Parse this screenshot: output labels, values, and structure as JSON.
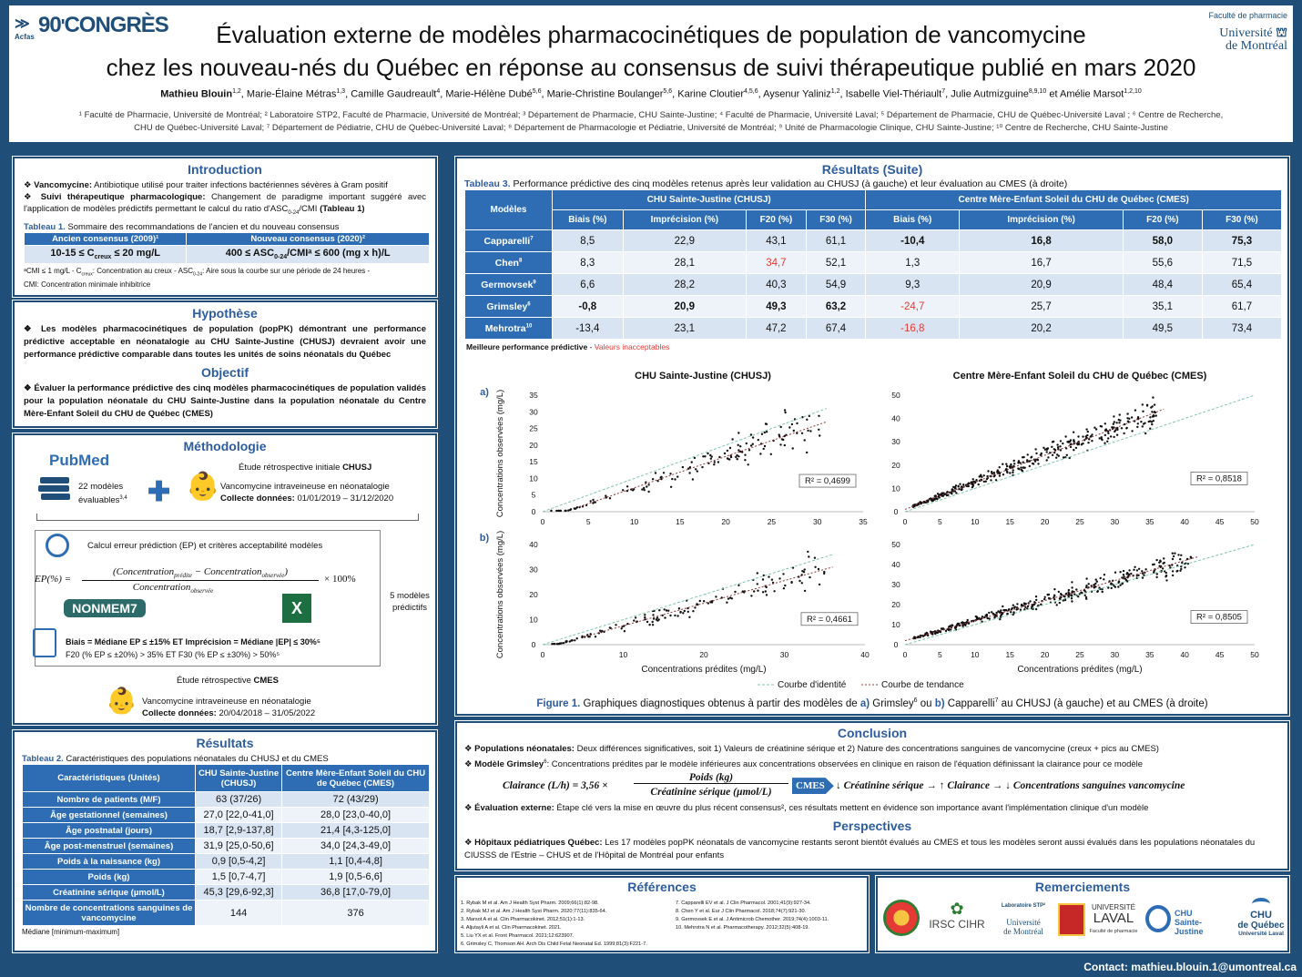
{
  "header": {
    "congress": "90",
    "congress_word": "CONGRÈS",
    "logo_small": "Acfas",
    "title_l1": "Évaluation externe de modèles pharmacocinétiques de population de vancomycine",
    "title_l2": "chez les nouveau-nés du Québec en réponse au consensus de suivi thérapeutique publié en mars 2020",
    "authors": [
      {
        "name": "Mathieu Blouin",
        "sup": "1,2",
        "bold": true
      },
      {
        "name": "Marie-Élaine Métras",
        "sup": "1,3"
      },
      {
        "name": "Camille Gaudreault",
        "sup": "4"
      },
      {
        "name": "Marie-Hélène Dubé",
        "sup": "5,6"
      },
      {
        "name": "Marie-Christine Boulanger",
        "sup": "5,6"
      },
      {
        "name": "Karine Cloutier",
        "sup": "4,5,6"
      },
      {
        "name": "Aysenur Yaliniz",
        "sup": "1,2"
      },
      {
        "name": "Isabelle Viel-Thériault",
        "sup": "7"
      },
      {
        "name": "Julie Autmizguine",
        "sup": "8,9,10"
      },
      {
        "name": "Amélie Marsot",
        "sup": "1,2,10",
        "prefix": "et "
      }
    ],
    "affil_l1": "¹ Faculté de Pharmacie, Université de Montréal; ² Laboratoire STP2, Faculté de Pharmacie, Université de Montréal; ³ Département de Pharmacie, CHU Sainte-Justine; ⁴ Faculté de Pharmacie, Université Laval; ⁵ Département de Pharmacie, CHU de Québec-Université Laval ; ⁶ Centre de Recherche,",
    "affil_l2": "CHU de Québec-Université Laval; ⁷ Département de Pédiatrie, CHU de Québec-Université Laval; ⁸ Département de Pharmacologie et Pédiatrie, Université de Montréal; ⁹ Unité de Pharmacologie Clinique, CHU Sainte-Justine; ¹⁰ Centre de Recherche, CHU Sainte-Justine",
    "faculty": "Faculté de pharmacie",
    "udem1": "Université",
    "udem2": "de Montréal"
  },
  "intro": {
    "title": "Introduction",
    "b1_bold": "Vancomycine:",
    "b1": " Antibiotique utilisé pour traiter infections bactériennes sévères à Gram positif",
    "b2_bold": "Suivi thérapeutique pharmacologique:",
    "b2": " Changement de paradigme important suggéré avec l'application de modèles prédictifs permettant le calcul du ratio d'ASC",
    "b2_sub": "0-24",
    "b2_end": "/CMI ",
    "b2_ref": "(Tableau 1)",
    "table_label": "Tableau 1.",
    "table_caption": " Sommaire des recommandations de l'ancien et du nouveau consensus",
    "col_old": "Ancien consensus (2009)¹",
    "col_new": "Nouveau consensus (2020)²",
    "val_old": "10-15 ≤ C",
    "val_old_sub": "creux",
    "val_old_end": " ≤ 20 mg/L",
    "val_new": "400 ≤ ASC",
    "val_new_sub": "0-24",
    "val_new_end": "/CMIᵃ ≤ 600 (mg x h)/L",
    "note1": "ᵃCMI ≤ 1 mg/L - C",
    "note1_sub": "creux",
    "note1_end": ": Concentration au creux - ASC",
    "note1_sub2": "0-24",
    "note1_end2": ": Aire sous la courbe sur une période de 24 heures -",
    "note2": "CMI: Concentration minimale inhibitrice"
  },
  "hypo": {
    "title": "Hypothèse",
    "text": "Les modèles pharmacocinétiques de population (popPK) démontrant une performance prédictive acceptable en néonatalogie au CHU Sainte-Justine (CHUSJ) devraient avoir une performance prédictive comparable dans toutes les unités de soins néonatals du Québec"
  },
  "objectif": {
    "title": "Objectif",
    "text": "Évaluer la performance prédictive des cinq modèles pharmacocinétiques de population validés pour la population néonatale du CHU Sainte-Justine dans la population néonatale du Centre Mère-Enfant Soleil du CHU de Québec (CMES)"
  },
  "methodo": {
    "title": "Méthodologie",
    "pubmed": "PubMed",
    "models_count": "22 modèles",
    "models_eval": "évaluables",
    "models_sup": "3,4",
    "study1": "Étude rétrospective initiale ",
    "study1_bold": "CHUSJ",
    "vanco": "Vancomycine intraveineuse en néonatalogie",
    "collect1_bold": "Collecte données:",
    "collect1": " 01/01/2019 – 31/12/2020",
    "calc": "Calcul erreur prédiction (EP) et critères acceptabilité modèles",
    "ep_label": "EP(%) =",
    "ep_num": "(Concentration",
    "ep_pred": "prédite",
    "ep_minus": " − Concentration",
    "ep_obs": "observée",
    "ep_den": "Concentration",
    "ep_times": "× 100%",
    "nonmem": "NONMEM7",
    "five_models": "5 modèles prédictifs",
    "crit1": "Biais = Médiane EP ≤ ±15% ET Imprécision = Médiane |EP| ≤ 30%⁵",
    "crit2": "F20 (% EP ≤ ±20%) > 35% ET F30 (% EP ≤ ±30%) > 50%⁵",
    "study2": "Étude rétrospective ",
    "study2_bold": "CMES",
    "vanco2": "Vancomycine intraveineuse en néonatalogie",
    "collect2_bold": "Collecte données:",
    "collect2": " 20/04/2018 – 31/05/2022"
  },
  "resultats": {
    "title": "Résultats",
    "table_label": "Tableau 2.",
    "table_caption": " Caractéristiques des populations néonatales du CHUSJ et du CMES",
    "headers": [
      "Caractéristiques (Unités)",
      "CHU Sainte-Justine (CHUSJ)",
      "Centre Mère-Enfant Soleil du CHU de Québec (CMES)"
    ],
    "rows": [
      [
        "Nombre de patients (M/F)",
        "63 (37/26)",
        "72 (43/29)"
      ],
      [
        "Âge gestationnel (semaines)",
        "27,0 [22,0-41,0]",
        "28,0 [23,0-40,0]"
      ],
      [
        "Âge postnatal (jours)",
        "18,7 [2,9-137,8]",
        "21,4 [4,3-125,0]"
      ],
      [
        "Âge post-menstruel (semaines)",
        "31,9 [25,0-50,6]",
        "34,0 [24,3-49,0]"
      ],
      [
        "Poids à la naissance (kg)",
        "0,9 [0,5-4,2]",
        "1,1 [0,4-4,8]"
      ],
      [
        "Poids (kg)",
        "1,5 [0,7-4,7]",
        "1,9 [0,5-6,6]"
      ],
      [
        "Créatinine sérique (µmol/L)",
        "45,3 [29,6-92,3]",
        "36,8 [17,0-79,0]"
      ],
      [
        "Nombre de concentrations sanguines de vancomycine",
        "144",
        "376"
      ]
    ],
    "note": "Médiane [minimum-maximum]"
  },
  "suite": {
    "title": "Résultats (Suite)",
    "table_label": "Tableau 3.",
    "table_caption": " Performance prédictive des cinq modèles retenus après leur validation au CHUSJ (à gauche) et leur évaluation au CMES (à droite)",
    "col_models": "Modèles",
    "grp1": "CHU Sainte-Justine (CHUSJ)",
    "grp2": "Centre Mère-Enfant Soleil du CHU de Québec (CMES)",
    "sub": [
      "Biais (%)",
      "Imprécision (%)",
      "F20 (%)",
      "F30 (%)",
      "Biais (%)",
      "Imprécision (%)",
      "F20 (%)",
      "F30 (%)"
    ],
    "rows": [
      {
        "model": "Capparelli",
        "sup": "7",
        "vals": [
          "8,5",
          "22,9",
          "43,1",
          "61,1",
          "-10,4",
          "16,8",
          "58,0",
          "75,3"
        ],
        "bold": [
          4,
          5,
          6,
          7
        ],
        "red": []
      },
      {
        "model": "Chen",
        "sup": "8",
        "vals": [
          "8,3",
          "28,1",
          "34,7",
          "52,1",
          "1,3",
          "16,7",
          "55,6",
          "71,5"
        ],
        "bold": [],
        "red": [
          2
        ]
      },
      {
        "model": "Germovsek",
        "sup": "9",
        "vals": [
          "6,6",
          "28,2",
          "40,3",
          "54,9",
          "9,3",
          "20,9",
          "48,4",
          "65,4"
        ],
        "bold": [],
        "red": []
      },
      {
        "model": "Grimsley",
        "sup": "6",
        "vals": [
          "-0,8",
          "20,9",
          "49,3",
          "63,2",
          "-24,7",
          "25,7",
          "35,1",
          "61,7"
        ],
        "bold": [
          0,
          1,
          2,
          3
        ],
        "red": [
          4
        ]
      },
      {
        "model": "Mehrotra",
        "sup": "10",
        "vals": [
          "-13,4",
          "23,1",
          "47,2",
          "67,4",
          "-16,8",
          "20,2",
          "49,5",
          "73,4"
        ],
        "bold": [],
        "red": [
          4
        ]
      }
    ],
    "legend_bold": "Meilleure performance prédictive",
    "legend_sep": " - ",
    "legend_red": "Valeurs inacceptables",
    "fig_label": "Figure 1.",
    "fig_caption": " Graphiques diagnostiques obtenus à partir des modèles de ",
    "fig_a": "a)",
    "fig_a_txt": " Grimsley",
    "fig_a_sup": "6",
    "fig_or": " ou ",
    "fig_b": "b)",
    "fig_b_txt": " Capparelli",
    "fig_b_sup": "7",
    "fig_end": " au CHUSJ (à gauche) et au CMES (à droite)",
    "identity": "Courbe d'identité",
    "trend": "Courbe de tendance"
  },
  "chart_data": [
    {
      "type": "scatter",
      "panel": "a",
      "title": "CHU Sainte-Justine (CHUSJ)",
      "xlabel": "",
      "ylabel": "Concentrations observées (mg/L)",
      "xlim": [
        0,
        35
      ],
      "ylim": [
        0,
        35
      ],
      "xticks": [
        0,
        5,
        10,
        15,
        20,
        25,
        30,
        35
      ],
      "yticks": [
        0,
        5,
        10,
        15,
        20,
        25,
        30,
        35
      ],
      "r2": "R² = 0,4699",
      "n_points": 144,
      "identity": [
        [
          0,
          0
        ],
        [
          31,
          31
        ]
      ],
      "trend": [
        [
          4,
          1.5
        ],
        [
          31,
          27
        ]
      ]
    },
    {
      "type": "scatter",
      "panel": "a",
      "title": "Centre Mère-Enfant Soleil du CHU de Québec (CMES)",
      "xlabel": "",
      "ylabel": "",
      "xlim": [
        0,
        50
      ],
      "ylim": [
        0,
        50
      ],
      "xticks": [
        0,
        5,
        10,
        15,
        20,
        25,
        30,
        35,
        40,
        45,
        50
      ],
      "yticks": [
        0,
        10,
        20,
        30,
        40,
        50
      ],
      "r2": "R² = 0,8518",
      "n_points": 376,
      "identity": [
        [
          0,
          0
        ],
        [
          50,
          50
        ]
      ],
      "trend": [
        [
          0,
          1
        ],
        [
          37,
          44
        ]
      ]
    },
    {
      "type": "scatter",
      "panel": "b",
      "title": "",
      "xlabel": "Concentrations prédites (mg/L)",
      "ylabel": "Concentrations observées (mg/L)",
      "xlim": [
        0,
        40
      ],
      "ylim": [
        0,
        40
      ],
      "xticks": [
        0,
        10,
        20,
        30,
        40
      ],
      "yticks": [
        0,
        10,
        20,
        30,
        40
      ],
      "r2": "R² = 0,4661",
      "n_points": 144,
      "identity": [
        [
          0,
          0
        ],
        [
          36,
          36
        ]
      ],
      "trend": [
        [
          5,
          3
        ],
        [
          36,
          31
        ]
      ]
    },
    {
      "type": "scatter",
      "panel": "b",
      "title": "",
      "xlabel": "Concentrations prédites (mg/L)",
      "ylabel": "",
      "xlim": [
        0,
        50
      ],
      "ylim": [
        0,
        50
      ],
      "xticks": [
        0,
        5,
        10,
        15,
        20,
        25,
        30,
        35,
        40,
        45,
        50
      ],
      "yticks": [
        0,
        10,
        20,
        30,
        40,
        50
      ],
      "r2": "R² = 0,8505",
      "n_points": 376,
      "identity": [
        [
          0,
          0
        ],
        [
          50,
          50
        ]
      ],
      "trend": [
        [
          0,
          2
        ],
        [
          42,
          44
        ]
      ]
    }
  ],
  "conclusion": {
    "title": "Conclusion",
    "c1_bold": "Populations néonatales:",
    "c1": " Deux différences significatives, soit 1) Valeurs de créatinine sérique et 2) Nature des concentrations sanguines de vancomycine (creux + pics au CMES)",
    "c2_bold": "Modèle Grimsley",
    "c2_sup": "6",
    "c2": ": Concentrations prédites par le modèle inférieures aux concentrations observées en clinique en raison de l'équation définissant la clairance pour ce modèle",
    "eq_left": "Clairance (L/h) = 3,56 ×",
    "eq_num": "Poids (kg)",
    "eq_den": "Créatinine sérique (µmol/L)",
    "cmes": "CMES",
    "eq_right": "↓ Créatinine sérique → ↑ Clairance → ↓ Concentrations sanguines vancomycine",
    "c3_bold": "Évaluation externe:",
    "c3": " Étape clé vers la mise en œuvre du plus récent consensus², ces résultats mettent en évidence son importance avant l'implémentation clinique d'un modèle",
    "persp_title": "Perspectives",
    "p1_bold": "Hôpitaux pédiatriques Québec:",
    "p1": " Les 17 modèles popPK néonatals de vancomycine restants seront bientôt évalués au CMES et tous les modèles seront aussi évalués dans les populations néonatales du CIUSSS de l'Estrie – CHUS et de l'Hôpital de Montréal pour enfants"
  },
  "refs": {
    "title": "Références",
    "left": [
      "1. Rybak M et al. Am J Health Syst Pharm. 2009;66(1):82-98.",
      "2. Rybak MJ et al. Am J Health Syst Pharm. 2020;77(11):835-64.",
      "3. Marsot A et al. Clin Pharmacokinet. 2012;51(1):1-13.",
      "4. Aljutayli A et al. Clin Pharmacokinet. 2021.",
      "5. Liu YX et al. Front Pharmacol. 2021;12:623907.",
      "6. Grimsley C, Thomson AH. Arch Dis Child Fetal Neonatal Ed. 1999;81(3):F221-7."
    ],
    "right": [
      "7. Capparelli EV et al. J Clin Pharmacol. 2001;41(9):927-34.",
      "8. Chen Y et al. Eur J Clin Pharmacol. 2018;74(7):921-30.",
      "9. Germovsek E et al. J Antimicrob Chemother. 2019;74(4):1003-11.",
      "10. Mehrotra N et al. Pharmacotherapy. 2012;32(5):408-19."
    ]
  },
  "remerciements": {
    "title": "Remerciements",
    "irsc": "IRSC CIHR",
    "stp2": "Laboratoire STP²",
    "udem1": "Université",
    "udem2": "de Montréal",
    "ulaval1": "UNIVERSITÉ",
    "ulaval2": "LAVAL",
    "ulaval3": "Faculté de pharmacie",
    "chusj1": "CHU",
    "chusj2": "Sainte-Justine",
    "chuq1": "CHU",
    "chuq2": "de Québec",
    "chuq3": "Université Laval"
  },
  "contact": "Contact: mathieu.blouin.1@umontreal.ca"
}
